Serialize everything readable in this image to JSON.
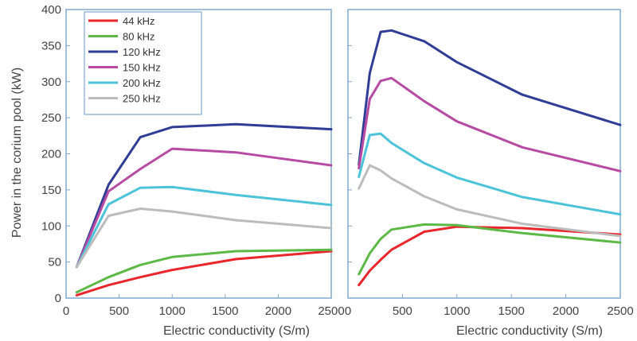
{
  "chart_data": [
    {
      "type": "line",
      "title": "",
      "xlabel": "Electric conductivity (S/m)",
      "ylabel": "Power in the corium pool (kW)",
      "xlim": [
        0,
        2500
      ],
      "ylim": [
        0,
        400
      ],
      "xticks": [
        "0",
        "500",
        "1000",
        "1500",
        "2000",
        "2500"
      ],
      "yticks": [
        "0",
        "50",
        "100",
        "150",
        "200",
        "250",
        "300",
        "350",
        "400"
      ],
      "grid": false,
      "legend": "top-left",
      "series": [
        {
          "name": "44 kHz",
          "color": "#e8262b",
          "x": [
            100,
            400,
            700,
            1000,
            1600,
            2500
          ],
          "y": [
            4,
            18,
            29,
            39,
            54,
            65
          ]
        },
        {
          "name": "80 kHz",
          "color": "#5cb946",
          "x": [
            100,
            400,
            700,
            1000,
            1600,
            2500
          ],
          "y": [
            8,
            29,
            46,
            57,
            65,
            67
          ]
        },
        {
          "name": "120 kHz",
          "color": "#2f3d96",
          "x": [
            100,
            400,
            700,
            1000,
            1600,
            2500
          ],
          "y": [
            43,
            157,
            223,
            237,
            241,
            234
          ]
        },
        {
          "name": "150 kHz",
          "color": "#b74ba3",
          "x": [
            100,
            400,
            700,
            1000,
            1600,
            2500
          ],
          "y": [
            43,
            148,
            179,
            207,
            202,
            184
          ]
        },
        {
          "name": "200 kHz",
          "color": "#4cc3d8",
          "x": [
            100,
            400,
            700,
            1000,
            1600,
            2500
          ],
          "y": [
            43,
            130,
            153,
            154,
            143,
            129
          ]
        },
        {
          "name": "250 kHz",
          "color": "#bcbcbc",
          "x": [
            100,
            400,
            700,
            1000,
            1600,
            2500
          ],
          "y": [
            43,
            114,
            124,
            120,
            108,
            97
          ]
        }
      ]
    },
    {
      "type": "line",
      "title": "",
      "xlabel": "Electric conductivity (S/m)",
      "ylabel": "",
      "xlim": [
        0,
        2500
      ],
      "ylim": [
        0,
        400
      ],
      "xticks": [
        "0",
        "500",
        "1000",
        "1500",
        "2000",
        "2500"
      ],
      "grid": false,
      "series": [
        {
          "name": "44 kHz",
          "color": "#e8262b",
          "x": [
            100,
            200,
            300,
            400,
            700,
            1000,
            1600,
            2500
          ],
          "y": [
            18,
            38,
            53,
            67,
            92,
            99,
            97,
            88
          ]
        },
        {
          "name": "80 kHz",
          "color": "#5cb946",
          "x": [
            100,
            200,
            300,
            400,
            700,
            1000,
            1600,
            2500
          ],
          "y": [
            33,
            62,
            82,
            95,
            102,
            101,
            90,
            77
          ]
        },
        {
          "name": "120 kHz",
          "color": "#2f3d96",
          "x": [
            100,
            200,
            300,
            400,
            700,
            1000,
            1600,
            2500
          ],
          "y": [
            185,
            312,
            369,
            371,
            356,
            327,
            282,
            240
          ]
        },
        {
          "name": "150 kHz",
          "color": "#b74ba3",
          "x": [
            100,
            200,
            300,
            400,
            700,
            1000,
            1600,
            2500
          ],
          "y": [
            180,
            276,
            301,
            305,
            273,
            245,
            209,
            176
          ]
        },
        {
          "name": "200 kHz",
          "color": "#4cc3d8",
          "x": [
            100,
            200,
            300,
            400,
            700,
            1000,
            1600,
            2500
          ],
          "y": [
            168,
            226,
            228,
            215,
            187,
            167,
            140,
            116
          ]
        },
        {
          "name": "250 kHz",
          "color": "#bcbcbc",
          "x": [
            100,
            200,
            300,
            400,
            700,
            1000,
            1600,
            2500
          ],
          "y": [
            152,
            184,
            177,
            166,
            141,
            123,
            103,
            86
          ]
        }
      ]
    }
  ]
}
